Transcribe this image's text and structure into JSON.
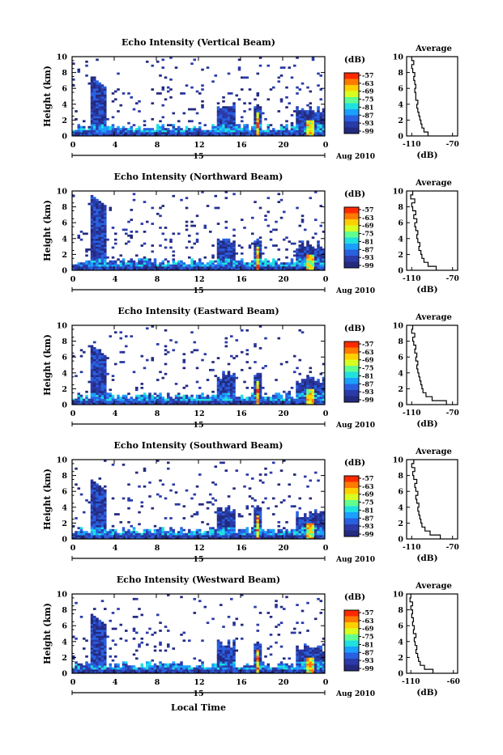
{
  "chart_data": [
    {
      "type": "heatmap",
      "title": "Echo Intensity (Vertical Beam)",
      "ylabel": "Height (km)",
      "xlabel": "",
      "date_label": "15",
      "date_suffix": "Aug 2010",
      "x_ticks": [
        "0",
        "4",
        "8",
        "12",
        "16",
        "20",
        "0"
      ],
      "y_ticks": [
        "0",
        "2",
        "4",
        "6",
        "8",
        "10"
      ],
      "xlim": [
        0,
        24
      ],
      "ylim": [
        0,
        10
      ],
      "colorbar": {
        "unit": "(dB)",
        "ticks": [
          "-57",
          "-63",
          "-69",
          "-75",
          "-81",
          "-87",
          "-93",
          "-99"
        ]
      },
      "average": {
        "title": "Average",
        "xlabel": "(dB)",
        "x_ticks": [
          "-110",
          "-70"
        ],
        "xlim": [
          -115,
          -65
        ],
        "y_ticks": [
          "0",
          "2",
          "4",
          "6",
          "8",
          "10"
        ],
        "profile": [
          -94,
          -98,
          -100,
          -101,
          -102,
          -103,
          -104,
          -105,
          -104,
          -106,
          -106,
          -107,
          -106,
          -107,
          -108,
          -107,
          -109,
          -110,
          -108,
          -110
        ]
      }
    },
    {
      "type": "heatmap",
      "title": "Echo Intensity (Northward Beam)",
      "ylabel": "Height (km)",
      "xlabel": "",
      "date_label": "15",
      "date_suffix": "Aug 2010",
      "x_ticks": [
        "0",
        "4",
        "8",
        "12",
        "16",
        "20",
        "0"
      ],
      "y_ticks": [
        "0",
        "2",
        "4",
        "6",
        "8",
        "10"
      ],
      "xlim": [
        0,
        24
      ],
      "ylim": [
        0,
        10
      ],
      "colorbar": {
        "unit": "(dB)",
        "ticks": [
          "-57",
          "-63",
          "-69",
          "-75",
          "-81",
          "-87",
          "-93",
          "-99"
        ]
      },
      "average": {
        "title": "Average",
        "xlabel": "(dB)",
        "x_ticks": [
          "-110",
          "-70"
        ],
        "xlim": [
          -115,
          -65
        ],
        "y_ticks": [
          "0",
          "2",
          "4",
          "6",
          "8",
          "10"
        ],
        "profile": [
          -86,
          -94,
          -98,
          -100,
          -101,
          -103,
          -102,
          -104,
          -105,
          -104,
          -106,
          -107,
          -105,
          -108,
          -106,
          -109,
          -110,
          -107,
          -111,
          -109
        ]
      }
    },
    {
      "type": "heatmap",
      "title": "Echo Intensity (Eastward Beam)",
      "ylabel": "Height (km)",
      "xlabel": "",
      "date_label": "15",
      "date_suffix": "Aug 2010",
      "x_ticks": [
        "0",
        "4",
        "8",
        "12",
        "16",
        "20",
        "0"
      ],
      "y_ticks": [
        "0",
        "2",
        "4",
        "6",
        "8",
        "10"
      ],
      "xlim": [
        0,
        24
      ],
      "ylim": [
        0,
        10
      ],
      "colorbar": {
        "unit": "(dB)",
        "ticks": [
          "-57",
          "-63",
          "-69",
          "-75",
          "-81",
          "-87",
          "-93",
          "-99"
        ]
      },
      "average": {
        "title": "Average",
        "xlabel": "(dB)",
        "x_ticks": [
          "-110",
          "-70"
        ],
        "xlim": [
          -115,
          -65
        ],
        "y_ticks": [
          "0",
          "2",
          "4",
          "6",
          "8",
          "10"
        ],
        "profile": [
          -76,
          -90,
          -96,
          -99,
          -100,
          -101,
          -102,
          -103,
          -104,
          -105,
          -104,
          -106,
          -105,
          -107,
          -106,
          -108,
          -109,
          -107,
          -110,
          -109
        ]
      }
    },
    {
      "type": "heatmap",
      "title": "Echo Intensity (Southward Beam)",
      "ylabel": "Height (km)",
      "xlabel": "",
      "date_label": "15",
      "date_suffix": "Aug 2010",
      "x_ticks": [
        "0",
        "4",
        "8",
        "12",
        "16",
        "20",
        "0"
      ],
      "y_ticks": [
        "0",
        "2",
        "4",
        "6",
        "8",
        "10"
      ],
      "xlim": [
        0,
        24
      ],
      "ylim": [
        0,
        10
      ],
      "colorbar": {
        "unit": "(dB)",
        "ticks": [
          "-57",
          "-63",
          "-69",
          "-75",
          "-81",
          "-87",
          "-93",
          "-99"
        ]
      },
      "average": {
        "title": "Average",
        "xlabel": "(dB)",
        "x_ticks": [
          "-110",
          "-70"
        ],
        "xlim": [
          -115,
          -65
        ],
        "y_ticks": [
          "0",
          "2",
          "4",
          "6",
          "8",
          "10"
        ],
        "profile": [
          -82,
          -92,
          -97,
          -100,
          -101,
          -102,
          -103,
          -104,
          -103,
          -105,
          -106,
          -104,
          -106,
          -107,
          -105,
          -108,
          -109,
          -107,
          -110,
          -108
        ]
      }
    },
    {
      "type": "heatmap",
      "title": "Echo Intensity (Westward Beam)",
      "ylabel": "Height (km)",
      "xlabel": "Local Time",
      "date_label": "15",
      "date_suffix": "Aug 2010",
      "x_ticks": [
        "0",
        "4",
        "8",
        "12",
        "16",
        "20",
        "0"
      ],
      "y_ticks": [
        "0",
        "2",
        "4",
        "6",
        "8",
        "10"
      ],
      "xlim": [
        0,
        24
      ],
      "ylim": [
        0,
        10
      ],
      "colorbar": {
        "unit": "(dB)",
        "ticks": [
          "-57",
          "-63",
          "-69",
          "-75",
          "-81",
          "-87",
          "-93",
          "-99"
        ]
      },
      "average": {
        "title": "Average",
        "xlabel": "(dB)",
        "x_ticks": [
          "-110",
          "-60"
        ],
        "xlim": [
          -115,
          -55
        ],
        "y_ticks": [
          "0",
          "2",
          "4",
          "6",
          "8",
          "10"
        ],
        "profile": [
          -84,
          -94,
          -99,
          -101,
          -102,
          -104,
          -103,
          -105,
          -106,
          -104,
          -107,
          -106,
          -108,
          -107,
          -109,
          -108,
          -110,
          -108,
          -111,
          -110
        ]
      }
    }
  ],
  "colorscale": [
    "#ff2a00",
    "#ff7a00",
    "#ffd000",
    "#d8ff20",
    "#60ff90",
    "#20e0e0",
    "#1aa0ff",
    "#2860e0",
    "#2a3aa8",
    "#232a80"
  ]
}
